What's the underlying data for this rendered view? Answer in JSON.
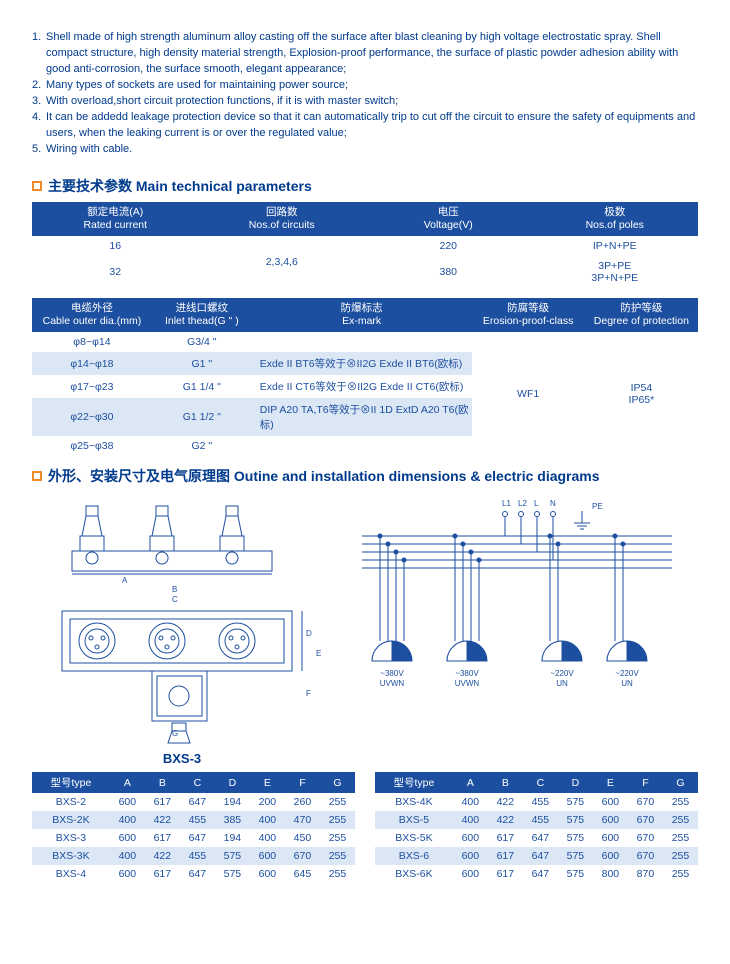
{
  "notes": [
    {
      "n": "1.",
      "t": "Shell made of high strength aluminum alloy casting off the surface after blast cleaning by high voltage electrostatic spray. Shell compact structure, high density material strength, Explosion-proof performance, the surface of plastic powder adhesion ability with good anti-corrosion, the surface smooth, elegant appearance;"
    },
    {
      "n": "2.",
      "t": "Many types of sockets are used for maintaining power source;"
    },
    {
      "n": "3.",
      "t": "With overload,short circuit protection functions, if it is with master switch;"
    },
    {
      "n": "4.",
      "t": "It can be addedd leakage protection device so that it can automatically trip to cut off the circuit to ensure the safety of equipments and users, when the leaking current is or over the regulated value;"
    },
    {
      "n": "5.",
      "t": "Wiring with cable."
    }
  ],
  "sec1_title": "主要技术参数 Main technical parameters",
  "sec2_title": "外形、安装尺寸及电气原理图 Outine and installation dimensions & electric diagrams",
  "tbl1": {
    "headers": [
      "额定电流(A)\nRated current",
      "回路数\nNos.of circuits",
      "电压\nVoltage(V)",
      "极数\nNos.of poles"
    ],
    "col1": [
      "16",
      "32"
    ],
    "col2": "2,3,4,6",
    "col3": [
      "220",
      "380"
    ],
    "col4": [
      "IP+N+PE",
      "3P+PE\n3P+N+PE"
    ]
  },
  "tbl2": {
    "headers": [
      "电缆外径\nCable outer dia.(mm)",
      "进线口螺纹\nInlet thead(G \" )",
      "防爆标志\nEx-mark",
      "防腐等级\nErosion-proof-class",
      "防护等级\nDegree of protection"
    ],
    "rows": [
      [
        "φ8~φ14",
        "G3/4 \"",
        "",
        "",
        ""
      ],
      [
        "φ14~φ18",
        "G1 \"",
        "Exde II BT6等效于⊗II2G Exde II BT6(欧标)",
        "",
        ""
      ],
      [
        "φ17~φ23",
        "G1 1/4 \"",
        "Exde II CT6等效于⊗II2G Exde II CT6(欧标)",
        "WF1",
        "IP54"
      ],
      [
        "φ22~φ30",
        "G1 1/2 \"",
        "DIP A20 TA,T6等效于⊗II 1D ExtD A20 T6(欧标)",
        "",
        "IP65*"
      ],
      [
        "φ25~φ38",
        "G2 \"",
        "",
        "",
        ""
      ]
    ]
  },
  "diagram": {
    "label": "BXS-3",
    "wire_labels": [
      "L1",
      "L2",
      "L",
      "N",
      "PE"
    ],
    "socket_labels": [
      "~380V\nUVWN",
      "~380V\nUVWN",
      "~220V\nUN",
      "~220V\nUN"
    ],
    "dim_letters": [
      "A",
      "B",
      "C",
      "D",
      "E",
      "F",
      "G"
    ]
  },
  "tbl3L": {
    "header": [
      "型号type",
      "A",
      "B",
      "C",
      "D",
      "E",
      "F",
      "G"
    ],
    "rows": [
      [
        "BXS-2",
        "600",
        "617",
        "647",
        "194",
        "200",
        "260",
        "255"
      ],
      [
        "BXS-2K",
        "400",
        "422",
        "455",
        "385",
        "400",
        "470",
        "255"
      ],
      [
        "BXS-3",
        "600",
        "617",
        "647",
        "194",
        "400",
        "450",
        "255"
      ],
      [
        "BXS-3K",
        "400",
        "422",
        "455",
        "575",
        "600",
        "670",
        "255"
      ],
      [
        "BXS-4",
        "600",
        "617",
        "647",
        "575",
        "600",
        "645",
        "255"
      ]
    ]
  },
  "tbl3R": {
    "header": [
      "型号type",
      "A",
      "B",
      "C",
      "D",
      "E",
      "F",
      "G"
    ],
    "rows": [
      [
        "BXS-4K",
        "400",
        "422",
        "455",
        "575",
        "600",
        "670",
        "255"
      ],
      [
        "BXS-5",
        "400",
        "422",
        "455",
        "575",
        "600",
        "670",
        "255"
      ],
      [
        "BXS-5K",
        "600",
        "617",
        "647",
        "575",
        "600",
        "670",
        "255"
      ],
      [
        "BXS-6",
        "600",
        "617",
        "647",
        "575",
        "600",
        "670",
        "255"
      ],
      [
        "BXS-6K",
        "600",
        "617",
        "647",
        "575",
        "800",
        "870",
        "255"
      ]
    ]
  }
}
